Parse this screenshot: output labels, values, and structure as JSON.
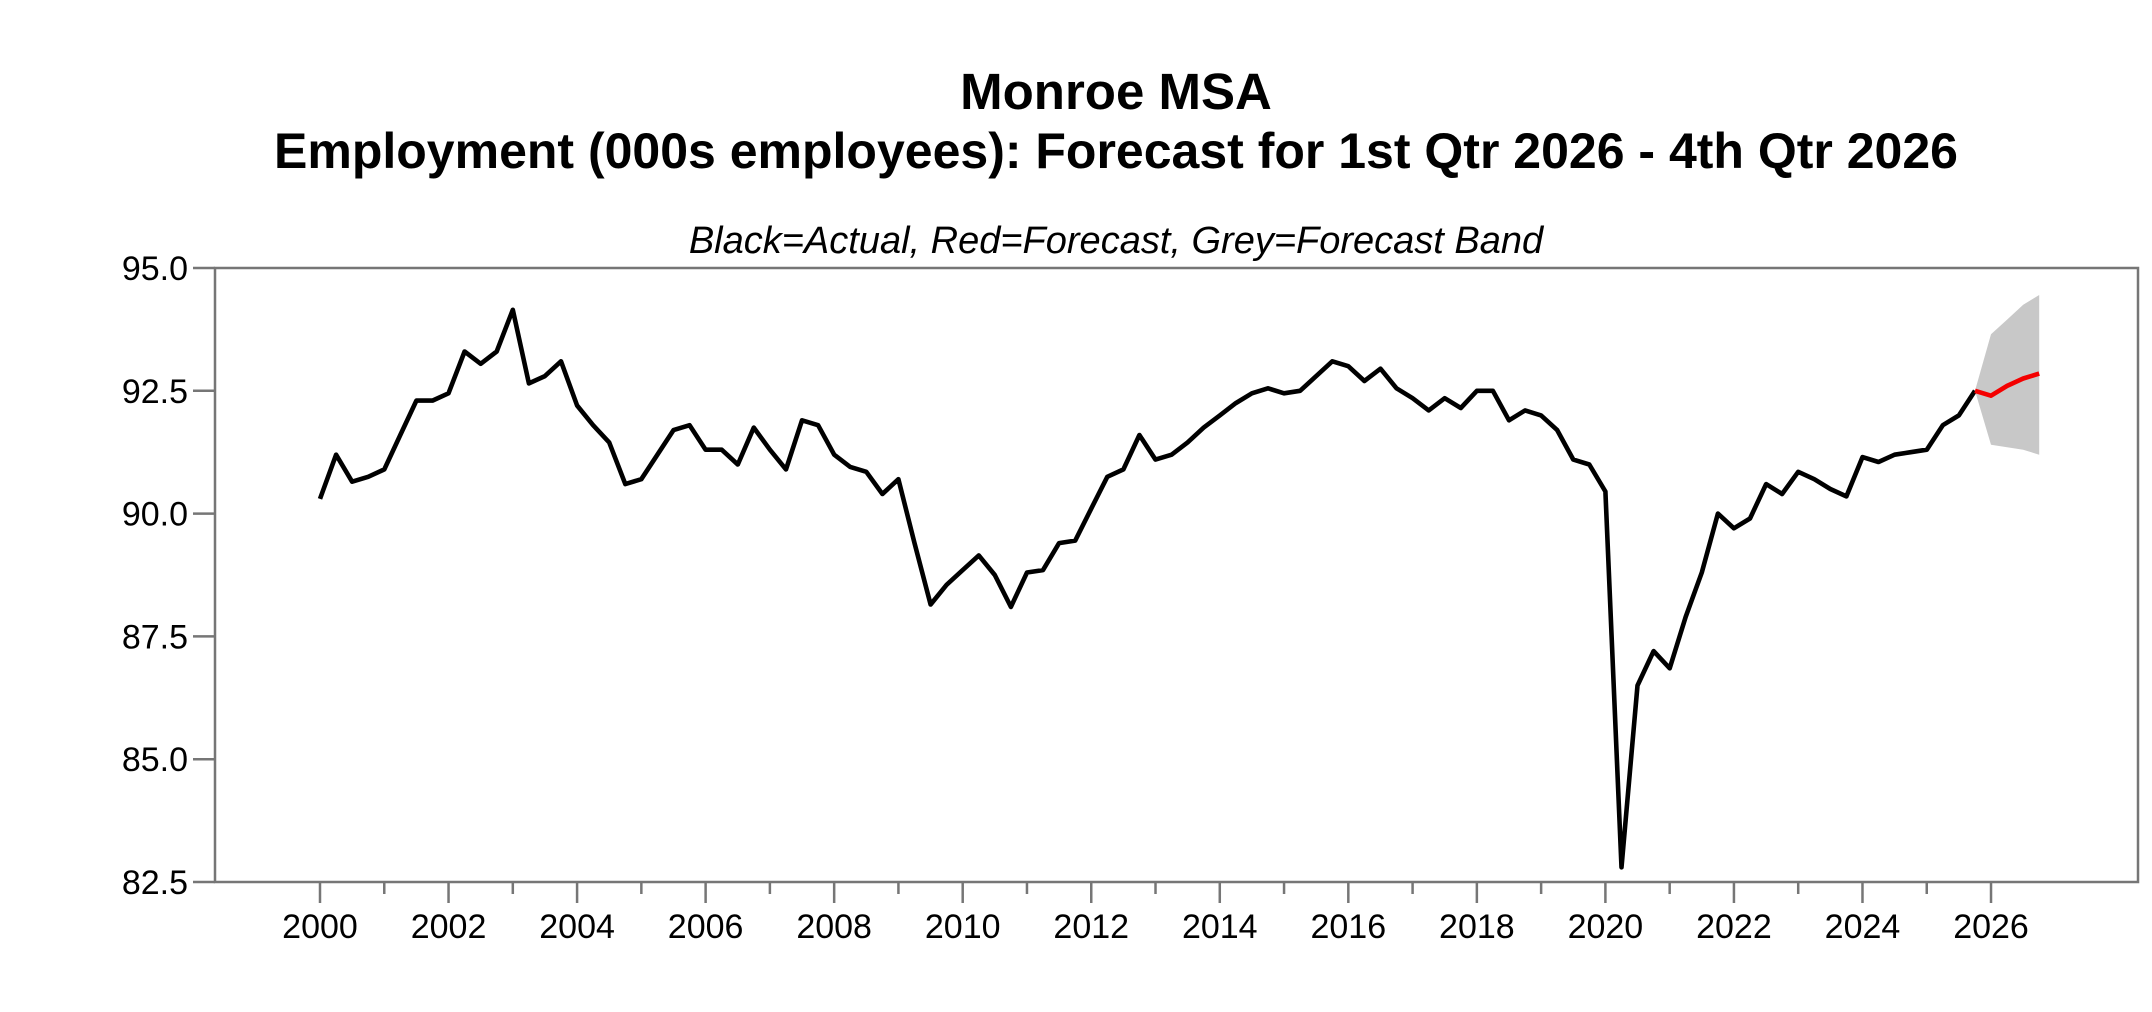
{
  "chart_data": {
    "type": "line",
    "title": "Monroe MSA",
    "subtitle": "Employment (000s employees): Forecast for 1st Qtr 2026 - 4th Qtr 2026",
    "legend_note": "Black=Actual, Red=Forecast, Grey=Forecast Band",
    "xlabel": "",
    "ylabel": "",
    "grid": false,
    "legend_position": "none",
    "ylim": [
      82.5,
      95.0
    ],
    "y_ticks": [
      82.5,
      85.0,
      87.5,
      90.0,
      92.5,
      95.0
    ],
    "y_tick_labels": [
      "82.5",
      "85.0",
      "87.5",
      "90.0",
      "92.5",
      "95.0"
    ],
    "x_ticks_labeled": [
      2000,
      2002,
      2004,
      2006,
      2008,
      2010,
      2012,
      2014,
      2016,
      2018,
      2020,
      2022,
      2024,
      2026
    ],
    "x_ticks_minor": [
      2001,
      2003,
      2005,
      2007,
      2009,
      2011,
      2013,
      2015,
      2017,
      2019,
      2021,
      2023,
      2025
    ],
    "colors": {
      "actual": "#000000",
      "forecast": "#f40000",
      "forecast_band": "#c8c8c8",
      "axis": "#767676",
      "background": "#ffffff"
    },
    "series": [
      {
        "name": "Actual",
        "role": "actual",
        "x_start": 2000.0,
        "x_step_years": 0.25,
        "values": [
          90.3,
          91.2,
          90.65,
          90.75,
          90.9,
          91.6,
          92.3,
          92.3,
          92.45,
          93.3,
          93.05,
          93.3,
          94.15,
          92.65,
          92.8,
          93.1,
          92.2,
          91.8,
          91.45,
          90.6,
          90.7,
          91.2,
          91.7,
          91.8,
          91.3,
          91.3,
          91.0,
          91.75,
          91.3,
          90.9,
          91.9,
          91.8,
          91.2,
          90.95,
          90.85,
          90.4,
          90.7,
          89.4,
          88.15,
          88.55,
          88.85,
          89.15,
          88.75,
          88.1,
          88.8,
          88.85,
          89.4,
          89.45,
          90.1,
          90.75,
          90.9,
          91.6,
          91.1,
          91.2,
          91.45,
          91.75,
          92.0,
          92.25,
          92.45,
          92.55,
          92.45,
          92.5,
          92.8,
          93.1,
          93.0,
          92.7,
          92.95,
          92.55,
          92.35,
          92.1,
          92.35,
          92.15,
          92.5,
          92.5,
          91.9,
          92.1,
          92.0,
          91.7,
          91.1,
          91.0,
          90.45,
          82.8,
          86.5,
          87.2,
          86.85,
          87.9,
          88.8,
          90.0,
          89.7,
          89.9,
          90.6,
          90.4,
          90.85,
          90.7,
          90.5,
          90.35,
          91.15,
          91.05,
          91.2,
          91.25,
          91.3,
          91.8,
          92.0,
          92.5
        ]
      },
      {
        "name": "Forecast",
        "role": "forecast",
        "x": [
          2025.75,
          2026.0,
          2026.25,
          2026.5,
          2026.75
        ],
        "values": [
          92.5,
          92.4,
          92.6,
          92.75,
          92.85
        ]
      },
      {
        "name": "Forecast Band",
        "role": "forecast_band",
        "x": [
          2025.75,
          2026.0,
          2026.25,
          2026.5,
          2026.75
        ],
        "upper": [
          92.5,
          93.65,
          93.95,
          94.25,
          94.45
        ],
        "lower": [
          92.5,
          91.4,
          91.35,
          91.3,
          91.2
        ]
      }
    ]
  }
}
